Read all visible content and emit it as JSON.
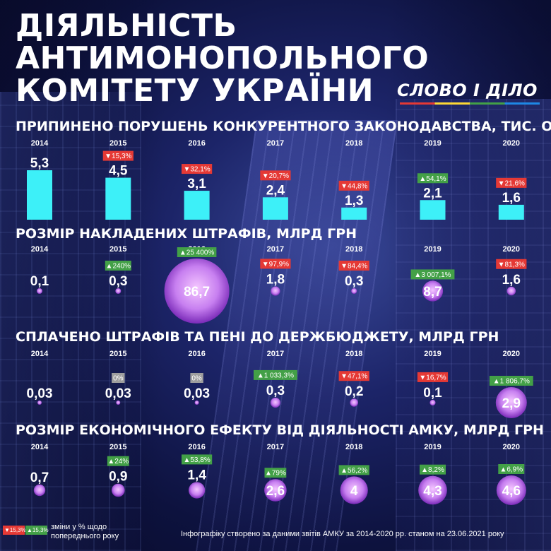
{
  "title_lines": [
    "ДІЯЛЬНІСТЬ",
    "АНТИМОНОПОЛЬНОГО",
    "КОМІТЕТУ УКРАЇНИ"
  ],
  "logo": "СЛОВО І ДІЛО",
  "colors": {
    "bar": "#3df0f8",
    "bubble": "#c77ff0",
    "badge_down": "#e53935",
    "badge_up": "#43a047",
    "badge_zero": "#9e9e9e",
    "background": "#141a55"
  },
  "chart_data": [
    {
      "type": "bar",
      "title": "ПРИПИНЕНО ПОРУШЕНЬ КОНКУРЕНТНОГО ЗАКОНОДАВСТВА, ТИС. ОД.",
      "categories": [
        "2014",
        "2015",
        "2016",
        "2017",
        "2018",
        "2019",
        "2020"
      ],
      "values": [
        5.3,
        4.5,
        3.1,
        2.4,
        1.3,
        2.1,
        1.6
      ],
      "labels": [
        "5,3",
        "4,5",
        "3,1",
        "2,4",
        "1,3",
        "2,1",
        "1,6"
      ],
      "changes": [
        null,
        {
          "dir": "down",
          "text": "15,3%"
        },
        {
          "dir": "down",
          "text": "32,1%"
        },
        {
          "dir": "down",
          "text": "20,7%"
        },
        {
          "dir": "down",
          "text": "44,8%"
        },
        {
          "dir": "up",
          "text": "54,1%"
        },
        {
          "dir": "down",
          "text": "21,6%"
        }
      ]
    },
    {
      "type": "bubble",
      "title": "РОЗМІР НАКЛАДЕНИХ ШТРАФІВ, МЛРД ГРН",
      "categories": [
        "2014",
        "2015",
        "2016",
        "2017",
        "2018",
        "2019",
        "2020"
      ],
      "values": [
        0.1,
        0.3,
        86.7,
        1.8,
        0.3,
        8.7,
        1.6
      ],
      "labels": [
        "0,1",
        "0,3",
        "86,7",
        "1,8",
        "0,3",
        "8,7",
        "1,6"
      ],
      "changes": [
        null,
        {
          "dir": "up",
          "text": "240%"
        },
        {
          "dir": "up",
          "text": "25 400%"
        },
        {
          "dir": "down",
          "text": "97,9%"
        },
        {
          "dir": "down",
          "text": "84,4%"
        },
        {
          "dir": "up",
          "text": "3 007,1%"
        },
        {
          "dir": "down",
          "text": "81,3%"
        }
      ]
    },
    {
      "type": "bubble",
      "title": "СПЛАЧЕНО ШТРАФІВ ТА ПЕНІ ДО ДЕРЖБЮДЖЕТУ, МЛРД ГРН",
      "categories": [
        "2014",
        "2015",
        "2016",
        "2017",
        "2018",
        "2019",
        "2020"
      ],
      "values": [
        0.03,
        0.03,
        0.03,
        0.3,
        0.2,
        0.1,
        2.9
      ],
      "labels": [
        "0,03",
        "0,03",
        "0,03",
        "0,3",
        "0,2",
        "0,1",
        "2,9"
      ],
      "changes": [
        null,
        {
          "dir": "zero",
          "text": "0%"
        },
        {
          "dir": "zero",
          "text": "0%"
        },
        {
          "dir": "up",
          "text": "1 033,3%"
        },
        {
          "dir": "down",
          "text": "47,1%"
        },
        {
          "dir": "down",
          "text": "16,7%"
        },
        {
          "dir": "up",
          "text": "1 806,7%"
        }
      ]
    },
    {
      "type": "bubble",
      "title": "РОЗМІР ЕКОНОМІЧНОГО ЕФЕКТУ ВІД ДІЯЛЬНОСТІ АМКУ, МЛРД ГРН",
      "categories": [
        "2014",
        "2015",
        "2016",
        "2017",
        "2018",
        "2019",
        "2020"
      ],
      "values": [
        0.7,
        0.9,
        1.4,
        2.6,
        4,
        4.3,
        4.6
      ],
      "labels": [
        "0,7",
        "0,9",
        "1,4",
        "2,6",
        "4",
        "4,3",
        "4,6"
      ],
      "changes": [
        null,
        {
          "dir": "up",
          "text": "24%"
        },
        {
          "dir": "up",
          "text": "53,8%"
        },
        {
          "dir": "up",
          "text": "79%"
        },
        {
          "dir": "up",
          "text": "56,2%"
        },
        {
          "dir": "up",
          "text": "8,2%"
        },
        {
          "dir": "up",
          "text": "6,9%"
        }
      ]
    }
  ],
  "legend": {
    "down_sample": "▼15,3%",
    "up_sample": "▲15,3%",
    "text": "зміни у % щодо\nпопереднього року"
  },
  "source": "Інфографіку створено за даними звітів АМКУ за 2014-2020 рр. станом на 23.06.2021 року"
}
